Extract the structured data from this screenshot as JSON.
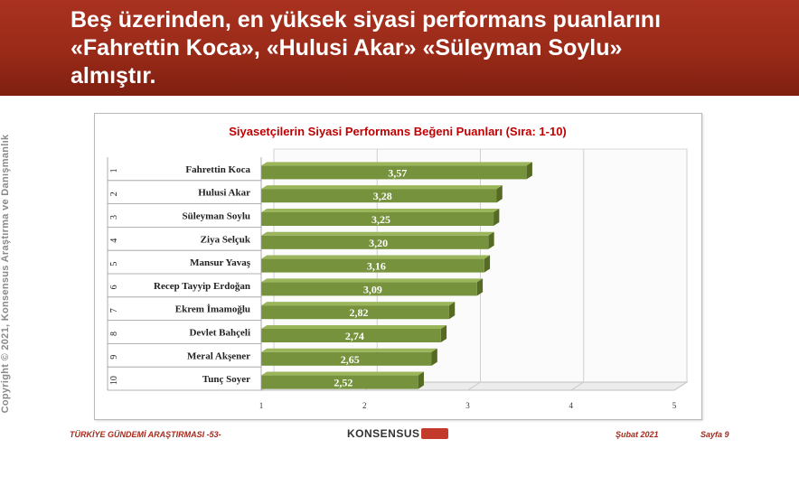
{
  "header": {
    "title": "Beş üzerinden, en yüksek siyasi performans puanlarını\n«Fahrettin Koca», «Hulusi Akar» «Süleyman Soylu»\nalmıştır."
  },
  "side_text": "Copyright © 2021, Konsensus Araştırma ve Danışmanlık",
  "footer": {
    "survey": "TÜRKİYE GÜNDEMİ ARAŞTIRMASI -53-",
    "logo": "KONSENSUS",
    "date": "Şubat 2021",
    "page": "Sayfa 9"
  },
  "colors": {
    "header_bg": "#9a2a18",
    "bar_fill": "#76923c",
    "title_red": "#c00000"
  },
  "chart_data": {
    "type": "bar",
    "orientation": "horizontal",
    "title": "Siyasetçilerin Siyasi Performans Beğeni Puanları (Sıra: 1-10)",
    "ranks": [
      "1",
      "2",
      "3",
      "4",
      "5",
      "6",
      "7",
      "8",
      "9",
      "10"
    ],
    "categories": [
      "Fahrettin Koca",
      "Hulusi Akar",
      "Süleyman Soylu",
      "Ziya Selçuk",
      "Mansur Yavaş",
      "Recep Tayyip Erdoğan",
      "Ekrem İmamoğlu",
      "Devlet Bahçeli",
      "Meral Akşener",
      "Tunç Soyer"
    ],
    "values": [
      3.57,
      3.28,
      3.25,
      3.2,
      3.16,
      3.09,
      2.82,
      2.74,
      2.65,
      2.52
    ],
    "value_labels": [
      "3,57",
      "3,28",
      "3,25",
      "3,20",
      "3,16",
      "3,09",
      "2,82",
      "2,74",
      "2,65",
      "2,52"
    ],
    "xlim": [
      1,
      5
    ],
    "xticks": [
      "1",
      "2",
      "3",
      "4",
      "5"
    ],
    "grid": true
  }
}
